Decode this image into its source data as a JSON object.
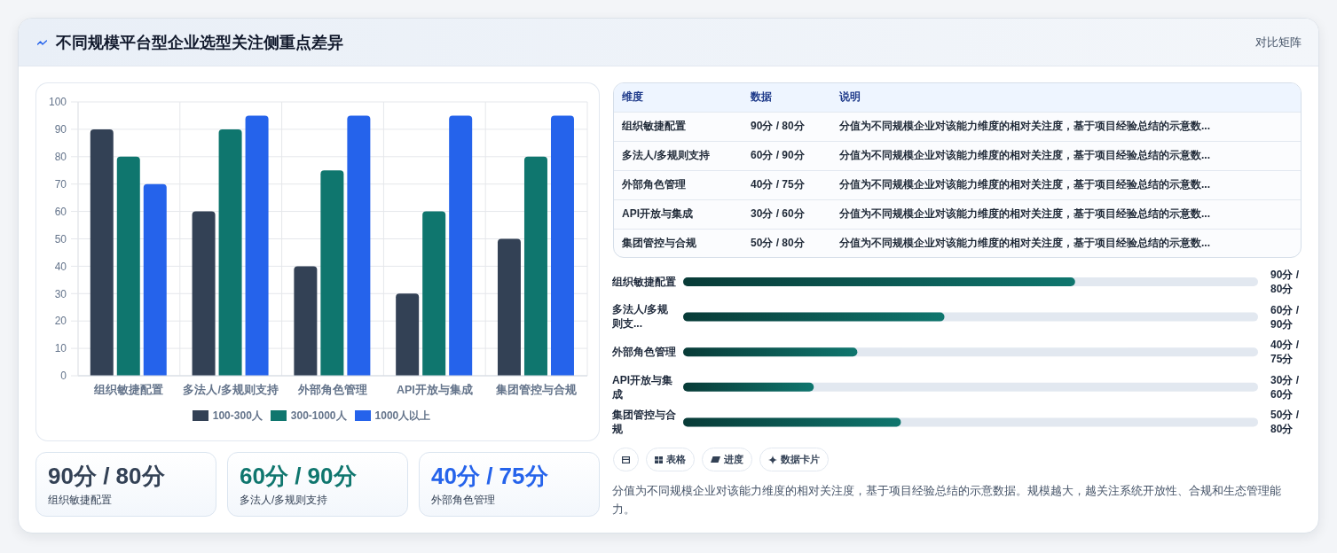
{
  "chart_data": [
    {
      "type": "other",
      "title": "不同规模平台型企业选型关注侧重点差异",
      "annotations": [
        "对比矩阵"
      ]
    },
    {
      "type": "bar",
      "categories": [
        "组织敏捷配置",
        "多法人/多规则支持",
        "外部角色管理",
        "API开放与集成",
        "集团管控与合规"
      ],
      "series": [
        {
          "name": "100-300人",
          "color": "#334155",
          "values": [
            90,
            60,
            40,
            30,
            50
          ]
        },
        {
          "name": "300-1000人",
          "color": "#0f766e",
          "values": [
            80,
            90,
            75,
            60,
            80
          ]
        },
        {
          "name": "1000人以上",
          "color": "#2563eb",
          "values": [
            70,
            95,
            95,
            95,
            95
          ]
        }
      ],
      "ylim": [
        0,
        100
      ],
      "yticks": [
        0,
        10,
        20,
        30,
        40,
        50,
        60,
        70,
        80,
        90,
        100
      ],
      "grid": true,
      "legend": "bottom"
    },
    {
      "type": "other",
      "categories": [
        "组织敏捷配置",
        "多法人/多规则支持",
        "外部角色管理"
      ],
      "value_labels": [
        "90分 / 80分",
        "60分 / 90分",
        "40分 / 75分"
      ]
    },
    {
      "type": "other",
      "categories": [
        "维度",
        "数据",
        "说明"
      ],
      "cell_labels": [
        [
          "组织敏捷配置",
          "90分 / 80分",
          "分值为不同规模企业对该能力维度的相对关注度，基于项目经验总结的示意数..."
        ],
        [
          "多法人/多规则支持",
          "60分 / 90分",
          "分值为不同规模企业对该能力维度的相对关注度，基于项目经验总结的示意数..."
        ],
        [
          "外部角色管理",
          "40分 / 75分",
          "分值为不同规模企业对该能力维度的相对关注度，基于项目经验总结的示意数..."
        ],
        [
          "API开放与集成",
          "30分 / 60分",
          "分值为不同规模企业对该能力维度的相对关注度，基于项目经验总结的示意数..."
        ],
        [
          "集团管控与合规",
          "50分 / 80分",
          "分值为不同规模企业对该能力维度的相对关注度，基于项目经验总结的示意数..."
        ]
      ]
    },
    {
      "type": "bar",
      "orientation": "horizontal",
      "categories": [
        "组织敏捷配置",
        "多法人/多规则支...",
        "外部角色管理",
        "API开放与集成",
        "集团管控与合规"
      ],
      "values": [
        90,
        60,
        40,
        30,
        50
      ],
      "value_labels": [
        "90分 / 80分",
        "60分 / 90分",
        "40分 / 75分",
        "30分 / 60分",
        "50分 / 80分"
      ],
      "color": "#0f766e",
      "xlim": [
        0,
        132
      ],
      "tick_labels": "y"
    },
    {
      "type": "other",
      "categories": [
        null,
        "表格",
        "进度",
        "数据卡片"
      ],
      "annotations": [
        "分值为不同规模企业对该能力维度的相对关注度，基于项目经验总结的示意数据。规模越大，越关注系统开放性、合规和生态管理能力。"
      ]
    }
  ]
}
